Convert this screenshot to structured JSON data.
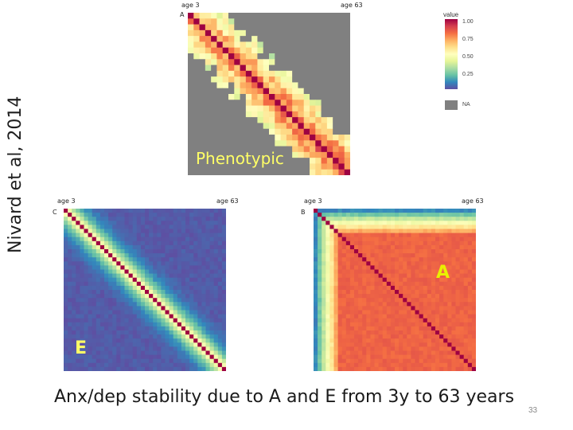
{
  "slide": {
    "side_title": "Nivard et al, 2014",
    "caption": "Anx/dep stability due to A and E from 3y to 63 years",
    "number": "33"
  },
  "figure": {
    "phenotypic": {
      "letter": "A",
      "age_start": "age 3",
      "age_end": "age 63",
      "overlay": "Phenotypic",
      "overlay_color": "#ffff66"
    },
    "environment": {
      "letter": "C",
      "age_start": "age 3",
      "age_end": "age 63",
      "overlay": "E",
      "overlay_color": "#ffff66"
    },
    "additive": {
      "letter": "B",
      "age_start": "age 3",
      "age_end": "age 63",
      "overlay": "A",
      "overlay_color": "#e9f000"
    },
    "legend": {
      "title": "value",
      "ticks": [
        "1.00",
        "0.75",
        "0.50",
        "0.25"
      ],
      "na_label": "NA"
    }
  },
  "colors": {
    "scale": [
      "#5e4fa2",
      "#3288bd",
      "#66c2a5",
      "#abdda4",
      "#e6f598",
      "#ffffbf",
      "#fee08b",
      "#fdae61",
      "#f46d43",
      "#d53e4f",
      "#9e0142"
    ],
    "na": "#808080"
  }
}
